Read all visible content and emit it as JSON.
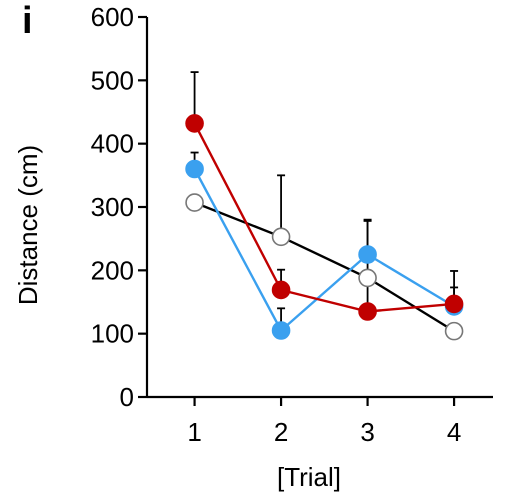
{
  "panel_label": "i",
  "chart_data": {
    "type": "line",
    "title": "",
    "xlabel": "[Trial]",
    "ylabel": "Distance (cm)",
    "x": [
      1,
      2,
      3,
      4
    ],
    "x_tick_labels": [
      "1",
      "2",
      "3",
      "4"
    ],
    "xlim": [
      0.45,
      4.45
    ],
    "ylim": [
      0,
      600
    ],
    "y_ticks": [
      0,
      100,
      200,
      300,
      400,
      500,
      600
    ],
    "y_tick_labels": [
      "0",
      "100",
      "200",
      "300",
      "400",
      "500",
      "600"
    ],
    "grid": false,
    "legend": "none",
    "series": [
      {
        "color": "#000000",
        "marker_fill": "#ffffff",
        "marker_stroke": "#777777",
        "values": [
          307,
          253,
          188,
          104
        ],
        "error_up": [
          0,
          97,
          90,
          0
        ]
      },
      {
        "color": "#3aa0ef",
        "marker_fill": "#3aa0ef",
        "marker_stroke": "#3aa0ef",
        "values": [
          360,
          105,
          225,
          143
        ],
        "error_up": [
          26,
          35,
          55,
          30
        ]
      },
      {
        "color": "#c00000",
        "marker_fill": "#c00000",
        "marker_stroke": "#c00000",
        "values": [
          432,
          169,
          135,
          147
        ],
        "error_up": [
          81,
          32,
          45,
          52
        ]
      }
    ]
  }
}
